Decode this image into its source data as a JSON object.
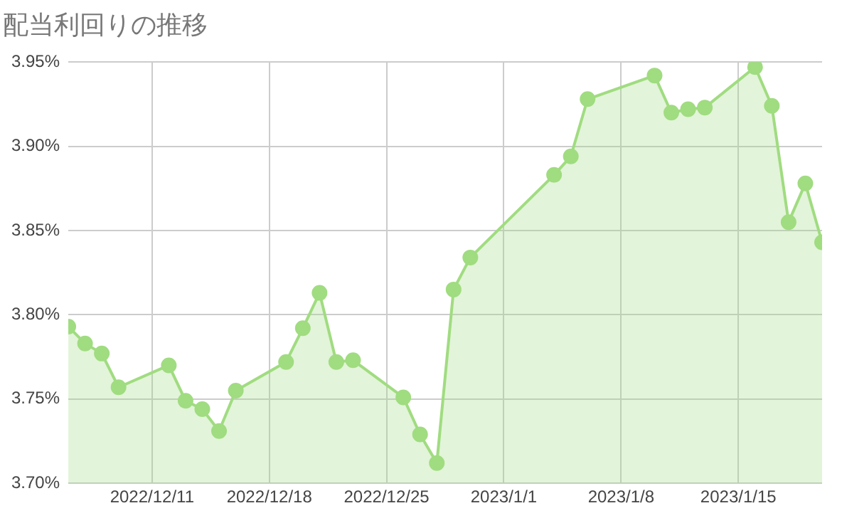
{
  "chart_data": {
    "type": "area",
    "title": "配当利回りの推移",
    "x": [
      "2022-12-06",
      "2022-12-07",
      "2022-12-08",
      "2022-12-09",
      "2022-12-12",
      "2022-12-13",
      "2022-12-14",
      "2022-12-15",
      "2022-12-16",
      "2022-12-19",
      "2022-12-20",
      "2022-12-21",
      "2022-12-22",
      "2022-12-23",
      "2022-12-26",
      "2022-12-27",
      "2022-12-28",
      "2022-12-29",
      "2022-12-30",
      "2023-01-04",
      "2023-01-05",
      "2023-01-06",
      "2023-01-10",
      "2023-01-11",
      "2023-01-12",
      "2023-01-13",
      "2023-01-16",
      "2023-01-17",
      "2023-01-18",
      "2023-01-19",
      "2023-01-20"
    ],
    "series": [
      {
        "color": "#a0dc80",
        "values": [
          3.793,
          3.783,
          3.777,
          3.757,
          3.77,
          3.749,
          3.744,
          3.731,
          3.755,
          3.772,
          3.792,
          3.813,
          3.772,
          3.773,
          3.751,
          3.729,
          3.712,
          3.815,
          3.834,
          3.883,
          3.894,
          3.928,
          3.942,
          3.92,
          3.922,
          3.923,
          3.947,
          3.924,
          3.855,
          3.878,
          3.843
        ]
      }
    ],
    "xlim": [
      "2022-12-06",
      "2023-01-20"
    ],
    "xticks": [
      {
        "value": "2022-12-11",
        "label": "2022/12/11"
      },
      {
        "value": "2022-12-18",
        "label": "2022/12/18"
      },
      {
        "value": "2022-12-25",
        "label": "2022/12/25"
      },
      {
        "value": "2023-01-01",
        "label": "2023/1/1"
      },
      {
        "value": "2023-01-08",
        "label": "2023/1/8"
      },
      {
        "value": "2023-01-15",
        "label": "2023/1/15"
      }
    ],
    "ylim": [
      3.7,
      3.95
    ],
    "yticks": [
      {
        "value": 3.7,
        "label": "3.70%"
      },
      {
        "value": 3.75,
        "label": "3.75%"
      },
      {
        "value": 3.8,
        "label": "3.80%"
      },
      {
        "value": 3.85,
        "label": "3.85%"
      },
      {
        "value": 3.9,
        "label": "3.90%"
      },
      {
        "value": 3.95,
        "label": "3.95%"
      }
    ],
    "grid": true,
    "legend": false,
    "marker": "circle",
    "line_style": "solid"
  }
}
